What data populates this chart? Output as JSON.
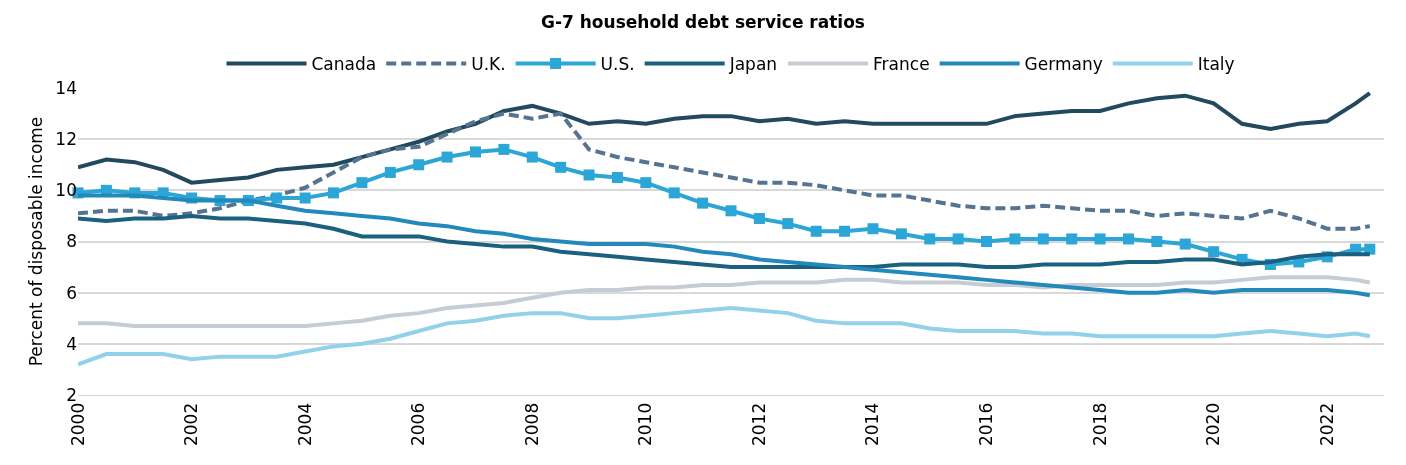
{
  "chart_data": {
    "type": "line",
    "title": "G-7 household debt service ratios",
    "ylabel": "Percent of disposable income",
    "x": [
      2000,
      2000.5,
      2001,
      2001.5,
      2002,
      2002.5,
      2003,
      2003.5,
      2004,
      2004.5,
      2005,
      2005.5,
      2006,
      2006.5,
      2007,
      2007.5,
      2008,
      2008.5,
      2009,
      2009.5,
      2010,
      2010.5,
      2011,
      2011.5,
      2012,
      2012.5,
      2013,
      2013.5,
      2014,
      2014.5,
      2015,
      2015.5,
      2016,
      2016.5,
      2017,
      2017.5,
      2018,
      2018.5,
      2019,
      2019.5,
      2020,
      2020.5,
      2021,
      2021.5,
      2022,
      2022.5,
      2022.75
    ],
    "series": [
      {
        "name": "Canada",
        "color": "#22495e",
        "values": [
          10.9,
          11.2,
          11.1,
          10.8,
          10.3,
          10.4,
          10.5,
          10.8,
          10.9,
          11.0,
          11.3,
          11.6,
          11.9,
          12.3,
          12.6,
          13.1,
          13.3,
          13.0,
          12.6,
          12.7,
          12.6,
          12.8,
          12.9,
          12.9,
          12.7,
          12.8,
          12.6,
          12.7,
          12.6,
          12.6,
          12.6,
          12.6,
          12.6,
          12.9,
          13.0,
          13.1,
          13.1,
          13.4,
          13.6,
          13.7,
          13.4,
          12.6,
          12.4,
          12.6,
          12.7,
          13.4,
          13.8
        ]
      },
      {
        "name": "U.K.",
        "color": "#56738f",
        "line_style": "dashed",
        "values": [
          9.1,
          9.2,
          9.2,
          9.0,
          9.1,
          9.3,
          9.6,
          9.8,
          10.1,
          10.7,
          11.3,
          11.6,
          11.7,
          12.2,
          12.7,
          13.0,
          12.8,
          13.0,
          11.6,
          11.3,
          11.1,
          10.9,
          10.7,
          10.5,
          10.3,
          10.3,
          10.2,
          10.0,
          9.8,
          9.8,
          9.6,
          9.4,
          9.3,
          9.3,
          9.4,
          9.3,
          9.2,
          9.2,
          9.0,
          9.1,
          9.0,
          8.9,
          9.2,
          8.9,
          8.5,
          8.5,
          8.6
        ]
      },
      {
        "name": "U.S.",
        "color": "#2ca5d7",
        "marker": "square",
        "values": [
          9.9,
          10.0,
          9.9,
          9.9,
          9.7,
          9.6,
          9.6,
          9.7,
          9.7,
          9.9,
          10.3,
          10.7,
          11.0,
          11.3,
          11.5,
          11.6,
          11.3,
          10.9,
          10.6,
          10.5,
          10.3,
          9.9,
          9.5,
          9.2,
          8.9,
          8.7,
          8.4,
          8.4,
          8.5,
          8.3,
          8.1,
          8.1,
          8.0,
          8.1,
          8.1,
          8.1,
          8.1,
          8.1,
          8.0,
          7.9,
          7.6,
          7.3,
          7.1,
          7.2,
          7.4,
          7.7,
          7.7
        ]
      },
      {
        "name": "Japan",
        "color": "#1b607e",
        "values": [
          8.9,
          8.8,
          8.9,
          8.9,
          9.0,
          8.9,
          8.9,
          8.8,
          8.7,
          8.5,
          8.2,
          8.2,
          8.2,
          8.0,
          7.9,
          7.8,
          7.8,
          7.6,
          7.5,
          7.4,
          7.3,
          7.2,
          7.1,
          7.0,
          7.0,
          7.0,
          7.0,
          7.0,
          7.0,
          7.1,
          7.1,
          7.1,
          7.0,
          7.0,
          7.1,
          7.1,
          7.1,
          7.2,
          7.2,
          7.3,
          7.3,
          7.1,
          7.2,
          7.4,
          7.5,
          7.5,
          7.5
        ]
      },
      {
        "name": "France",
        "color": "#c5ccd3",
        "values": [
          4.8,
          4.8,
          4.7,
          4.7,
          4.7,
          4.7,
          4.7,
          4.7,
          4.7,
          4.8,
          4.9,
          5.1,
          5.2,
          5.4,
          5.5,
          5.6,
          5.8,
          6.0,
          6.1,
          6.1,
          6.2,
          6.2,
          6.3,
          6.3,
          6.4,
          6.4,
          6.4,
          6.5,
          6.5,
          6.4,
          6.4,
          6.4,
          6.3,
          6.3,
          6.2,
          6.3,
          6.3,
          6.3,
          6.3,
          6.4,
          6.4,
          6.5,
          6.6,
          6.6,
          6.6,
          6.5,
          6.4
        ]
      },
      {
        "name": "Germany",
        "color": "#2389bb",
        "values": [
          9.8,
          9.8,
          9.8,
          9.7,
          9.6,
          9.6,
          9.6,
          9.4,
          9.2,
          9.1,
          9.0,
          8.9,
          8.7,
          8.6,
          8.4,
          8.3,
          8.1,
          8.0,
          7.9,
          7.9,
          7.9,
          7.8,
          7.6,
          7.5,
          7.3,
          7.2,
          7.1,
          7.0,
          6.9,
          6.8,
          6.7,
          6.6,
          6.5,
          6.4,
          6.3,
          6.2,
          6.1,
          6.0,
          6.0,
          6.1,
          6.0,
          6.1,
          6.1,
          6.1,
          6.1,
          6.0,
          5.9
        ]
      },
      {
        "name": "Italy",
        "color": "#92d1ea",
        "values": [
          3.2,
          3.6,
          3.6,
          3.6,
          3.4,
          3.5,
          3.5,
          3.5,
          3.7,
          3.9,
          4.0,
          4.2,
          4.5,
          4.8,
          4.9,
          5.1,
          5.2,
          5.2,
          5.0,
          5.0,
          5.1,
          5.2,
          5.3,
          5.4,
          5.3,
          5.2,
          4.9,
          4.8,
          4.8,
          4.8,
          4.6,
          4.5,
          4.5,
          4.5,
          4.4,
          4.4,
          4.3,
          4.3,
          4.3,
          4.3,
          4.3,
          4.4,
          4.5,
          4.4,
          4.3,
          4.4,
          4.3
        ]
      }
    ],
    "xlim": [
      2000,
      2023
    ],
    "xticks": [
      2000,
      2002,
      2004,
      2006,
      2008,
      2010,
      2012,
      2014,
      2016,
      2018,
      2020,
      2022
    ],
    "ylim": [
      2,
      14
    ],
    "yticks": [
      2,
      4,
      6,
      8,
      10,
      12,
      14
    ],
    "grid": "y",
    "legend": "top",
    "line_style": "solid",
    "marker": "none"
  }
}
